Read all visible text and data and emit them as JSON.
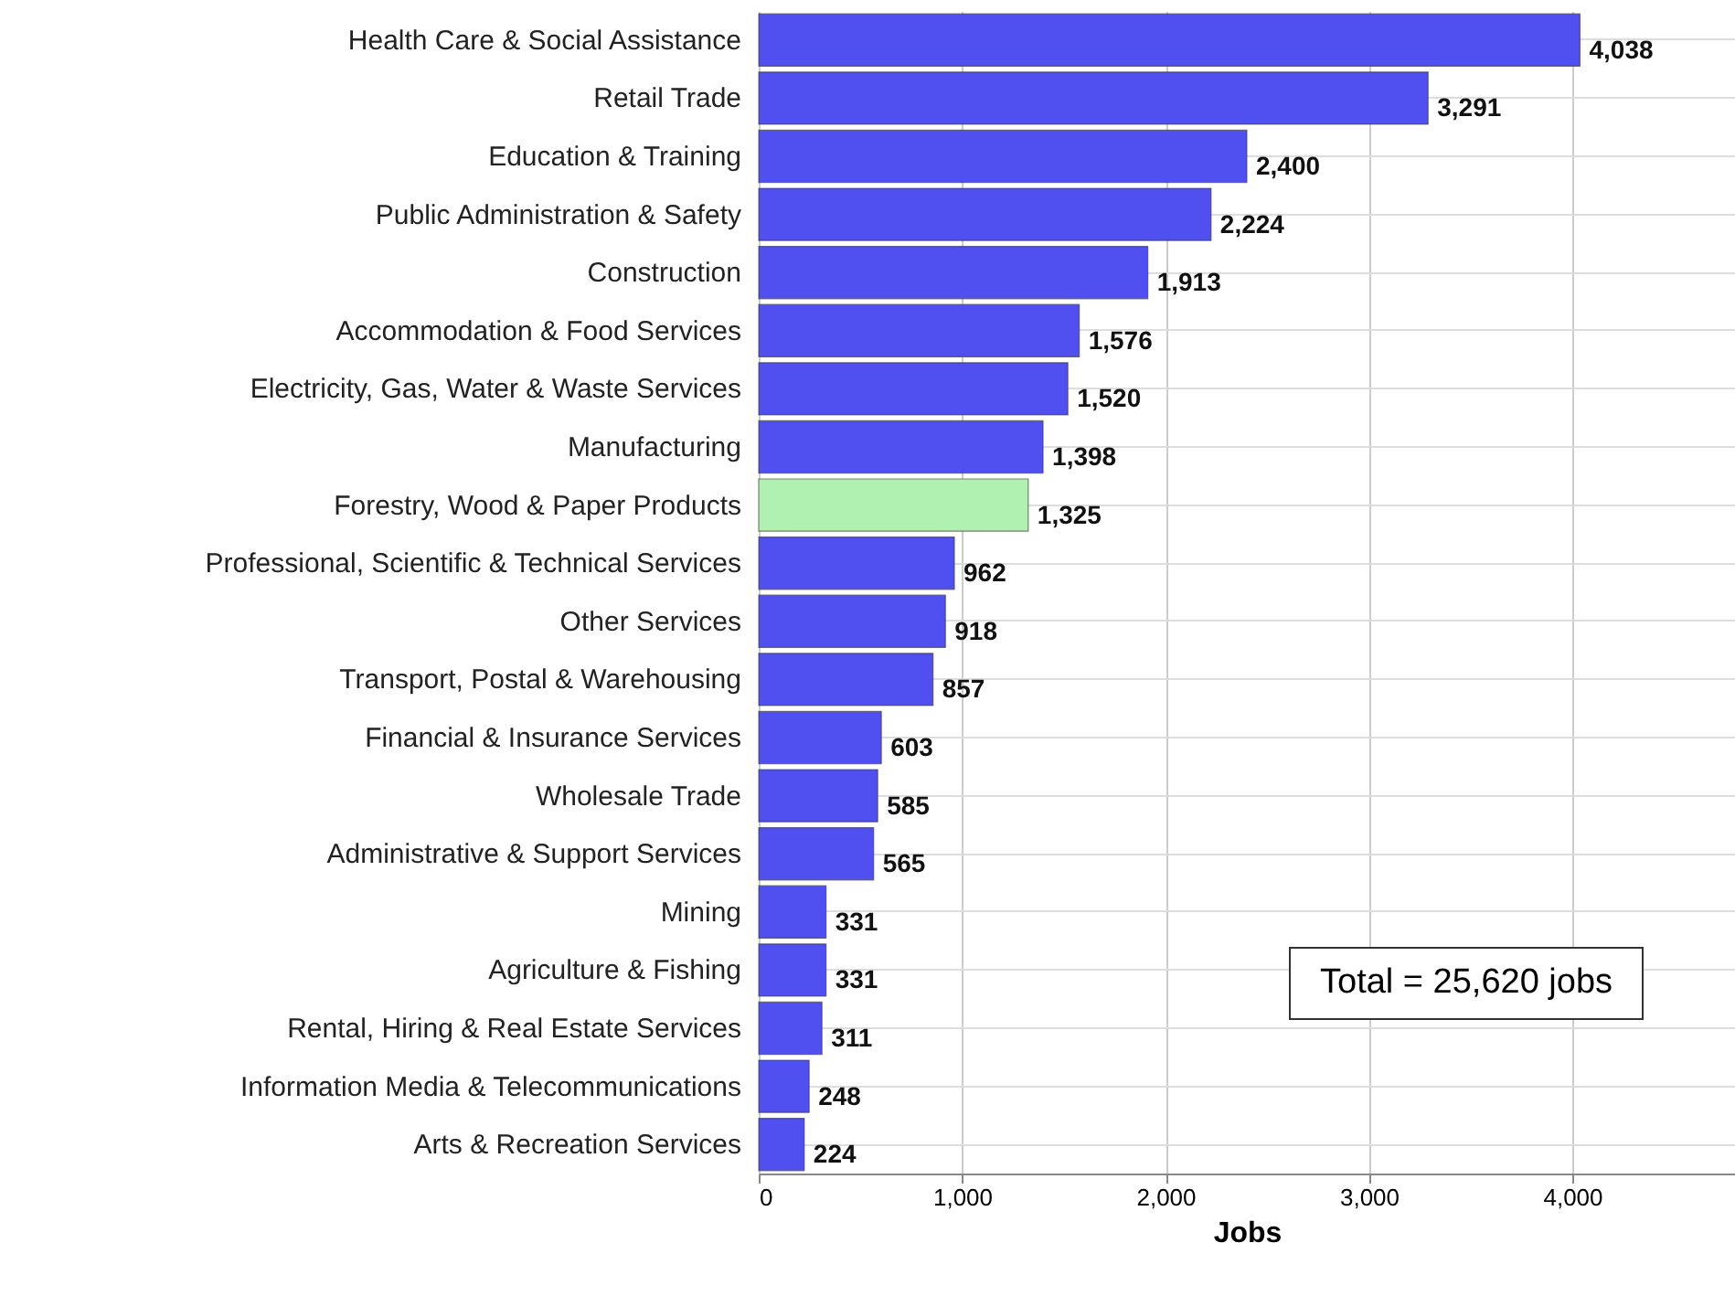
{
  "chart_data": {
    "type": "bar",
    "orientation": "horizontal",
    "xlabel": "Jobs",
    "categories": [
      "Health Care & Social Assistance",
      "Retail Trade",
      "Education & Training",
      "Public Administration & Safety",
      "Construction",
      "Accommodation & Food Services",
      "Electricity, Gas, Water & Waste Services",
      "Manufacturing",
      "Forestry, Wood & Paper Products",
      "Professional, Scientific & Technical Services",
      "Other Services",
      "Transport, Postal & Warehousing",
      "Financial & Insurance Services",
      "Wholesale Trade",
      "Administrative & Support Services",
      "Mining",
      "Agriculture & Fishing",
      "Rental, Hiring & Real Estate Services",
      "Information Media & Telecommunications",
      "Arts & Recreation Services"
    ],
    "values": [
      4038,
      3291,
      2400,
      2224,
      1913,
      1576,
      1520,
      1398,
      1325,
      962,
      918,
      857,
      603,
      585,
      565,
      331,
      331,
      311,
      248,
      224
    ],
    "colors": [
      "#5050f0",
      "#5050f0",
      "#5050f0",
      "#5050f0",
      "#5050f0",
      "#5050f0",
      "#5050f0",
      "#5050f0",
      "#b0f0b0",
      "#5050f0",
      "#5050f0",
      "#5050f0",
      "#5050f0",
      "#5050f0",
      "#5050f0",
      "#5050f0",
      "#5050f0",
      "#5050f0",
      "#5050f0",
      "#5050f0"
    ],
    "value_labels": [
      "4,038",
      "3,291",
      "2,400",
      "2,224",
      "1,913",
      "1,576",
      "1,520",
      "1,398",
      "1,325",
      "962",
      "918",
      "857",
      "603",
      "585",
      "565",
      "331",
      "331",
      "311",
      "248",
      "224"
    ],
    "xlim": [
      0,
      4800
    ],
    "xticks": [
      {
        "value": 0,
        "label": "0"
      },
      {
        "value": 1000,
        "label": "1,000"
      },
      {
        "value": 2000,
        "label": "2,000"
      },
      {
        "value": 3000,
        "label": "3,000"
      },
      {
        "value": 4000,
        "label": "4,000"
      }
    ],
    "grid": true,
    "annotations": [
      "Total = 25,620 jobs"
    ]
  }
}
